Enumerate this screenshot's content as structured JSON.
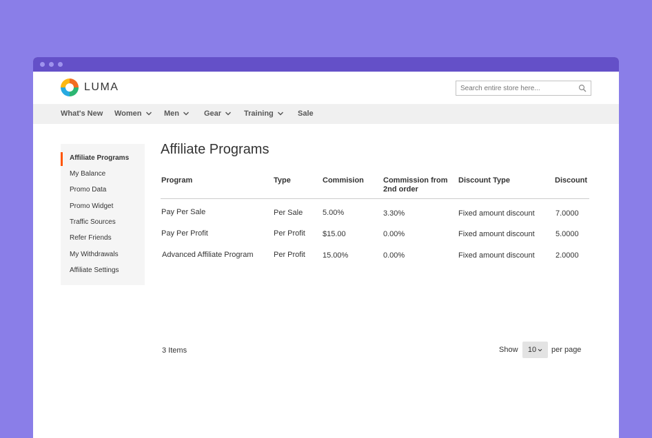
{
  "brand": {
    "name": "LUMA"
  },
  "search": {
    "placeholder": "Search entire store here..."
  },
  "nav": {
    "items": [
      {
        "label": "What's New",
        "has_dropdown": false
      },
      {
        "label": "Women",
        "has_dropdown": true
      },
      {
        "label": "Men",
        "has_dropdown": true
      },
      {
        "label": "Gear",
        "has_dropdown": true
      },
      {
        "label": "Training",
        "has_dropdown": true
      },
      {
        "label": "Sale",
        "has_dropdown": false
      }
    ]
  },
  "sidebar": {
    "active_index": 0,
    "items": [
      {
        "label": "Affiliate Programs"
      },
      {
        "label": "My Balance"
      },
      {
        "label": "Promo Data"
      },
      {
        "label": "Promo Widget"
      },
      {
        "label": "Traffic Sources"
      },
      {
        "label": "Refer Friends"
      },
      {
        "label": "My Withdrawals"
      },
      {
        "label": "Affiliate Settings"
      }
    ]
  },
  "main": {
    "title": "Affiliate Programs",
    "table": {
      "columns": [
        "Program",
        "Type",
        "Commision",
        "Commission from 2nd order",
        "Discount Type",
        "Discount"
      ],
      "rows": [
        [
          "Pay Per Sale",
          "Per Sale",
          "5.00%",
          "3.30%",
          "Fixed amount discount",
          "7.0000"
        ],
        [
          "Pay Per Profit",
          "Per Profit",
          "$15.00",
          "0.00%",
          "Fixed amount discount",
          "5.0000"
        ],
        [
          "Advanced Affiliate Program",
          "Per Profit",
          "15.00%",
          "0.00%",
          "Fixed amount discount",
          "2.0000"
        ]
      ]
    },
    "footer": {
      "items_count": "3 Items",
      "show_label": "Show",
      "per_page_value": "10",
      "per_page_label": "per page"
    }
  },
  "colors": {
    "background": "#8a7ee8",
    "titlebar": "#6450c8",
    "accent": "#ff5501"
  },
  "icons": {
    "search": "search-icon",
    "dropdown": "chevron-down-icon"
  }
}
